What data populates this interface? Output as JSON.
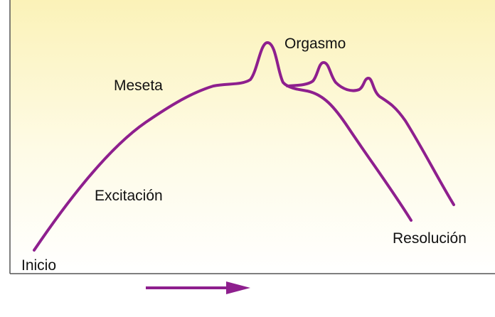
{
  "labels": {
    "orgasm": "Orgasmo",
    "plateau": "Meseta",
    "excitement": "Excitación",
    "start": "Inicio",
    "resolution": "Resolución"
  }
}
